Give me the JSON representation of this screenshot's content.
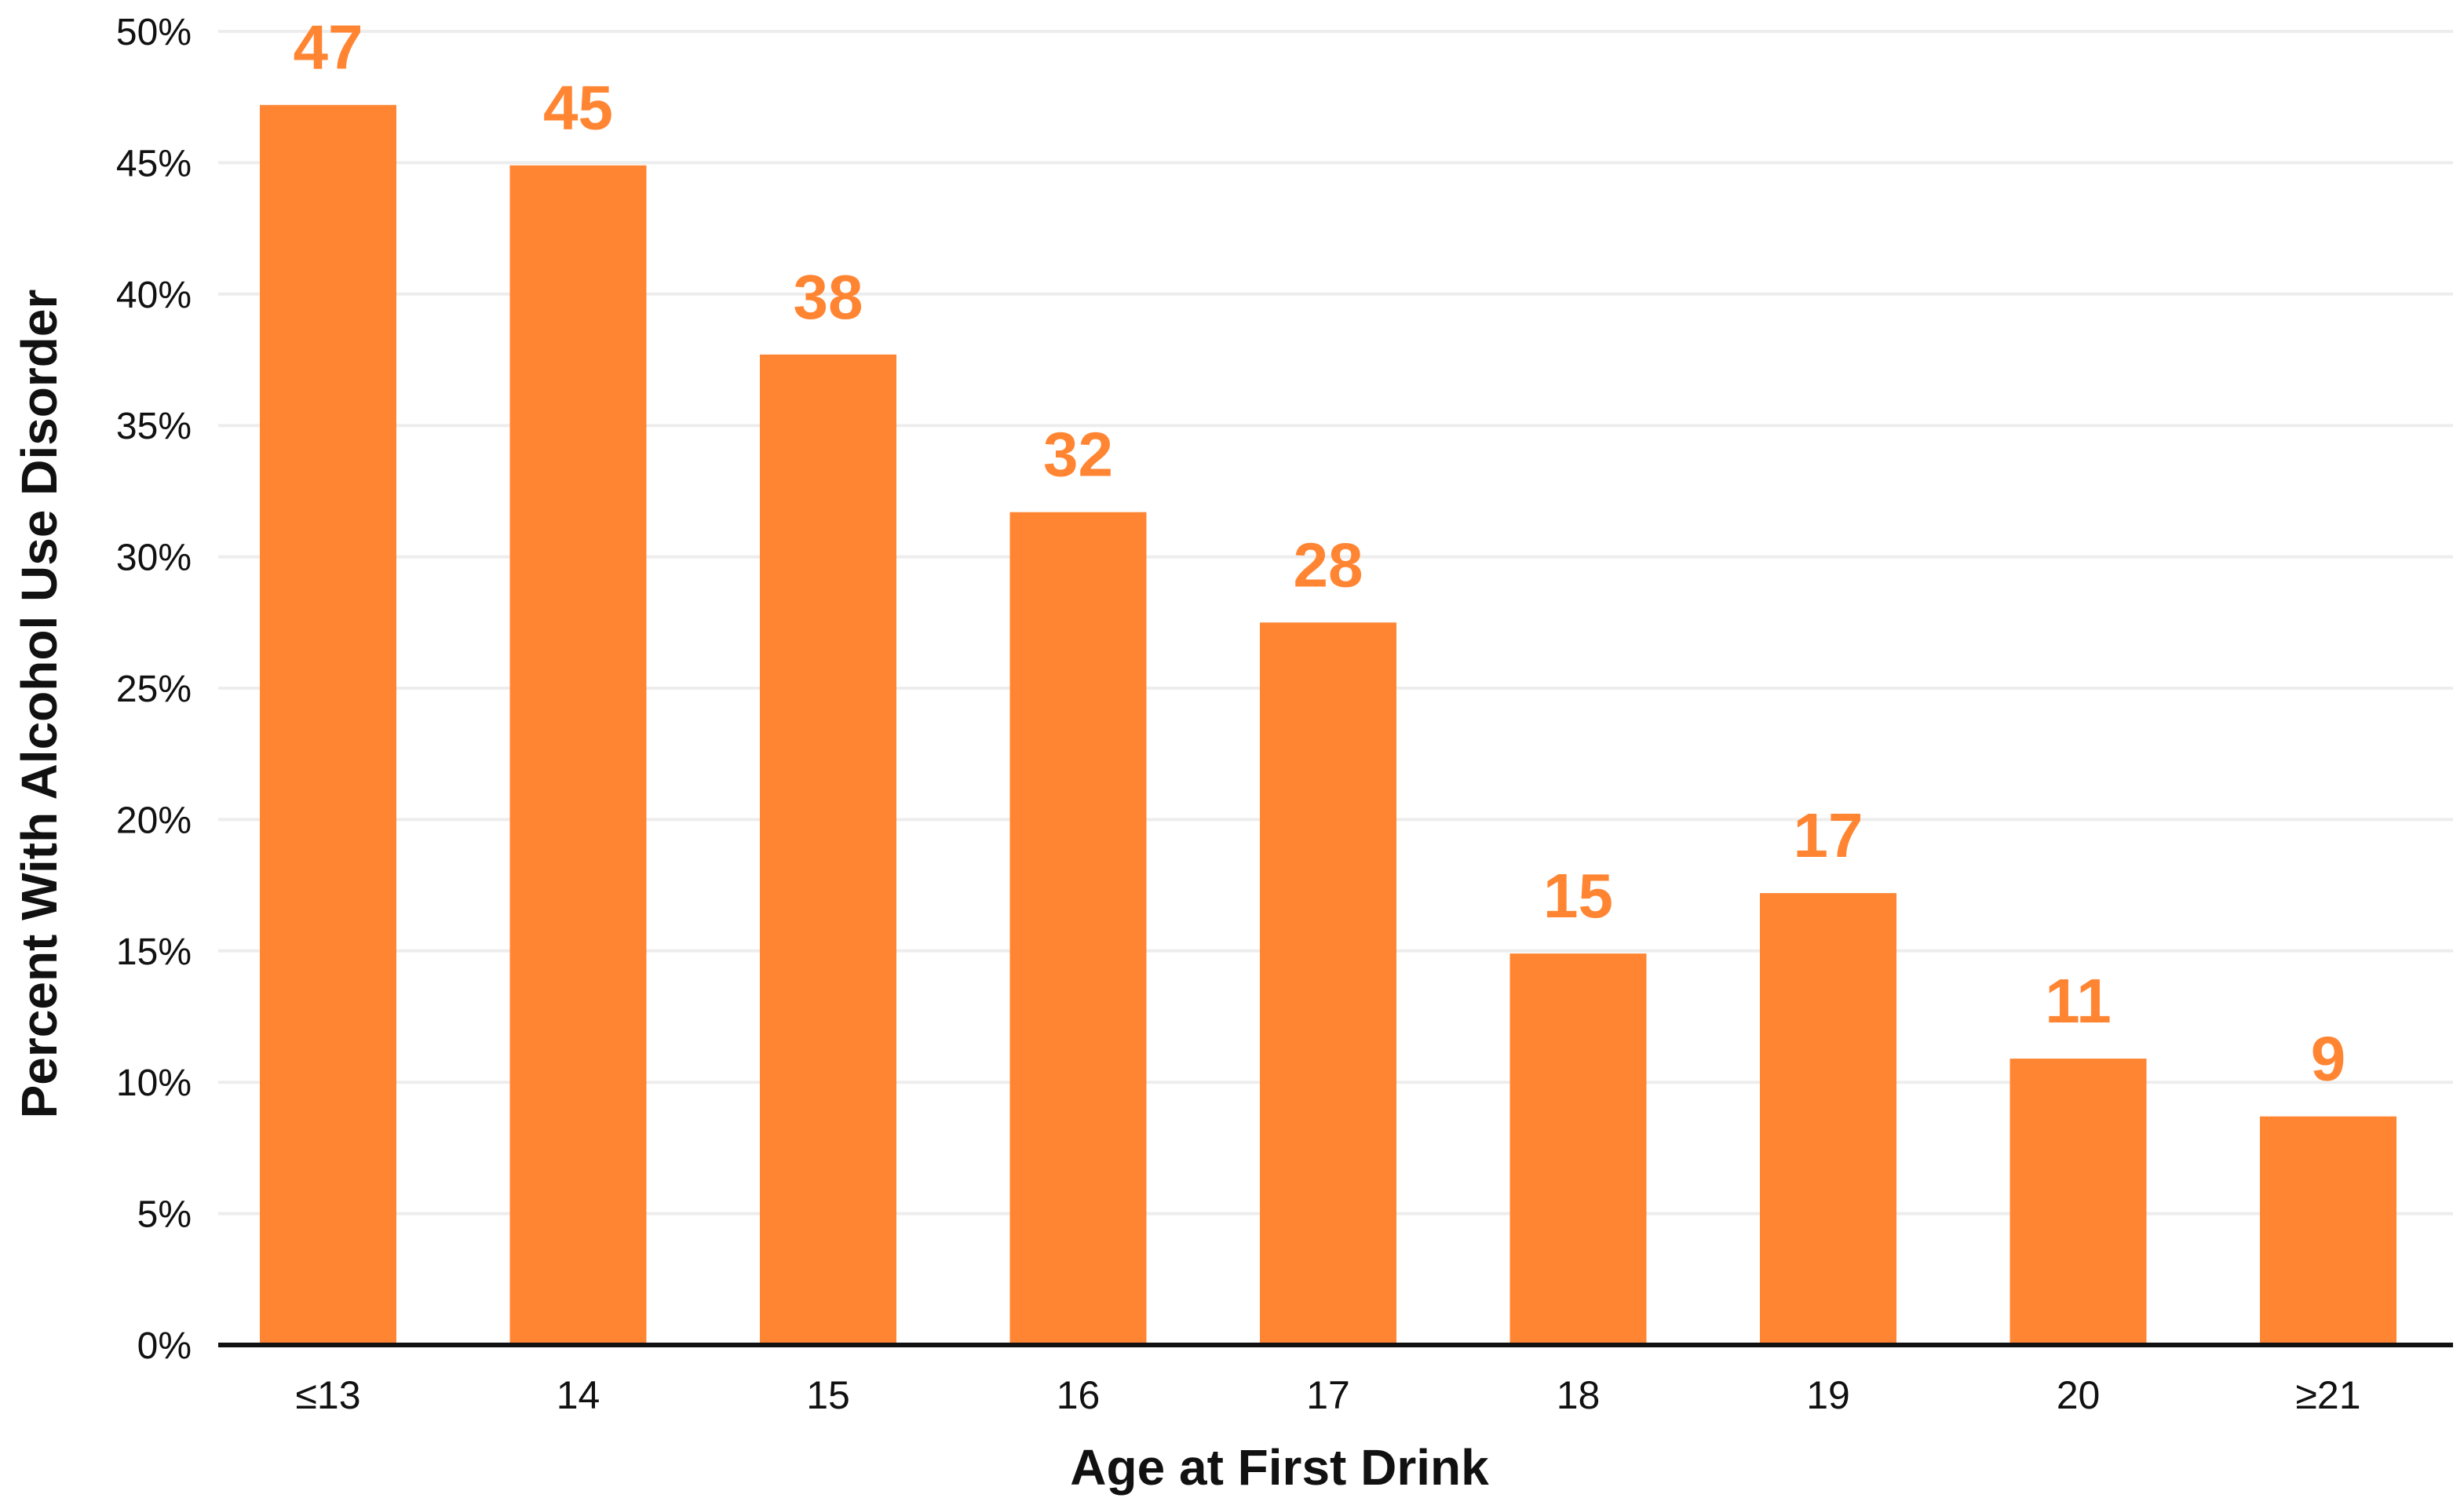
{
  "chart_data": {
    "type": "bar",
    "title": "",
    "xlabel": "Age at First Drink",
    "ylabel": "Percent With Alcohol Use Disorder",
    "categories": [
      "≤13",
      "14",
      "15",
      "16",
      "17",
      "18",
      "19",
      "20",
      "≥21"
    ],
    "values": [
      47.2,
      44.9,
      37.7,
      31.7,
      27.5,
      14.9,
      17.2,
      10.9,
      8.7
    ],
    "data_labels": [
      "47",
      "45",
      "38",
      "32",
      "28",
      "15",
      "17",
      "11",
      "9"
    ],
    "ylim": [
      0,
      50
    ],
    "yticks": [
      0,
      5,
      10,
      15,
      20,
      25,
      30,
      35,
      40,
      45,
      50
    ],
    "ytick_labels": [
      "0%",
      "5%",
      "10%",
      "15%",
      "20%",
      "25%",
      "30%",
      "35%",
      "40%",
      "45%",
      "50%"
    ],
    "grid": true,
    "legend": "none",
    "colors": {
      "bar": "#FF8533",
      "data_label": "#FF8533",
      "axis": "#111111",
      "grid": "#EDEDED"
    }
  }
}
